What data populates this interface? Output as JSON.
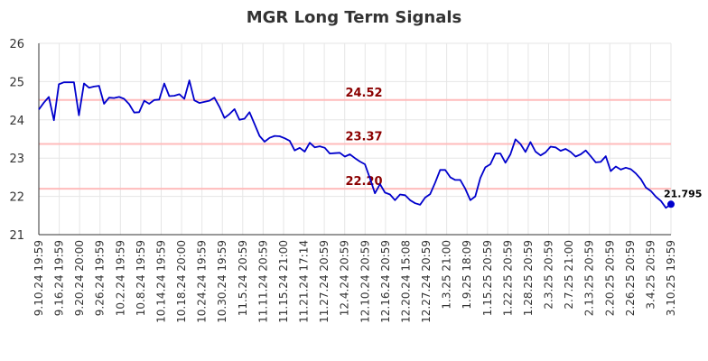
{
  "chart_data": {
    "type": "line",
    "title": "MGR Long Term Signals",
    "xlabel": "",
    "ylabel": "",
    "ylim": [
      21,
      26
    ],
    "y_ticks": [
      "21",
      "22",
      "23",
      "24",
      "25",
      "26"
    ],
    "x_tick_labels": [
      "9.10.24 19:59",
      "9.16.24 19:59",
      "9.20.24 20:00",
      "9.26.24 19:59",
      "10.2.24 19:59",
      "10.8.24 19:59",
      "10.14.24 19:59",
      "10.18.24 20:00",
      "10.24.24 19:59",
      "10.30.24 19:59",
      "11.5.24 20:59",
      "11.11.24 20:59",
      "11.15.24 21:00",
      "11.21.24 17:14",
      "11.27.24 20:59",
      "12.4.24 20:59",
      "12.10.24 20:59",
      "12.16.24 20:59",
      "12.20.24 15:08",
      "12.27.24 20:59",
      "1.3.25 21:00",
      "1.9.25 18:09",
      "1.15.25 20:59",
      "1.22.25 20:59",
      "1.28.25 20:59",
      "2.3.25 20:59",
      "2.7.25 21:00",
      "2.13.25 20:59",
      "2.20.25 20:59",
      "2.26.25 20:59",
      "3.4.25 20:59",
      "3.10.25 19:59"
    ],
    "grid": true,
    "levels": [
      {
        "value": 24.52,
        "label": "24.52",
        "color": "#ffbbbb"
      },
      {
        "value": 23.37,
        "label": "23.37",
        "color": "#ffbbbb"
      },
      {
        "value": 22.2,
        "label": "22.20",
        "color": "#ffbbbb"
      }
    ],
    "last_value_label": "21.795",
    "series": [
      {
        "color": "#0000cc",
        "values": [
          24.27,
          24.45,
          24.6,
          23.99,
          24.93,
          24.98,
          24.98,
          24.98,
          24.12,
          24.95,
          24.84,
          24.87,
          24.89,
          24.42,
          24.58,
          24.57,
          24.6,
          24.55,
          24.41,
          24.19,
          24.2,
          24.5,
          24.42,
          24.52,
          24.53,
          24.95,
          24.62,
          24.63,
          24.67,
          24.55,
          25.03,
          24.51,
          24.44,
          24.47,
          24.5,
          24.58,
          24.34,
          24.05,
          24.15,
          24.28,
          24.0,
          24.03,
          24.2,
          23.89,
          23.58,
          23.43,
          23.53,
          23.58,
          23.57,
          23.52,
          23.45,
          23.2,
          23.27,
          23.17,
          23.4,
          23.28,
          23.31,
          23.27,
          23.12,
          23.13,
          23.14,
          23.04,
          23.1,
          23.0,
          22.91,
          22.84,
          22.47,
          22.08,
          22.32,
          22.1,
          22.05,
          21.9,
          22.05,
          22.03,
          21.9,
          21.82,
          21.78,
          21.97,
          22.06,
          22.36,
          22.69,
          22.69,
          22.5,
          22.43,
          22.43,
          22.2,
          21.9,
          22.0,
          22.48,
          22.76,
          22.84,
          23.12,
          23.12,
          22.88,
          23.1,
          23.49,
          23.37,
          23.16,
          23.42,
          23.17,
          23.07,
          23.15,
          23.3,
          23.28,
          23.19,
          23.24,
          23.16,
          23.04,
          23.1,
          23.2,
          23.05,
          22.89,
          22.9,
          23.05,
          22.66,
          22.78,
          22.7,
          22.75,
          22.71,
          22.6,
          22.45,
          22.23,
          22.14,
          21.99,
          21.88,
          21.7,
          21.795
        ]
      }
    ]
  }
}
